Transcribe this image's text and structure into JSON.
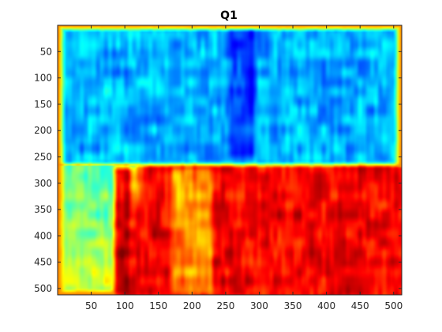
{
  "chart_data": {
    "type": "heatmap",
    "title": "Q1",
    "xlabel": "",
    "ylabel": "",
    "xlim": [
      0,
      512
    ],
    "ylim": [
      0,
      512
    ],
    "y_direction": "reversed",
    "colormap": "jet",
    "grid": false,
    "x_ticks": [
      50,
      100,
      150,
      200,
      250,
      300,
      350,
      400,
      450,
      500
    ],
    "y_ticks": [
      50,
      100,
      150,
      200,
      250,
      300,
      350,
      400,
      450,
      500
    ],
    "regions": [
      {
        "name": "upper",
        "x_range": [
          0,
          512
        ],
        "y_range": [
          0,
          265
        ],
        "value_level": 0.3
      },
      {
        "name": "lower",
        "x_range": [
          0,
          512
        ],
        "y_range": [
          265,
          512
        ],
        "value_level": 0.88
      },
      {
        "name": "lower-left-transition",
        "x_range": [
          0,
          120
        ],
        "y_range": [
          265,
          512
        ],
        "value_level": 0.45
      },
      {
        "name": "border",
        "x_range": [
          0,
          512
        ],
        "y_range": [
          0,
          512
        ],
        "value_level": 0.75
      }
    ],
    "features": [
      {
        "name": "dark-vertical-band-upper",
        "x_range": [
          255,
          295
        ],
        "y_range": [
          0,
          250
        ],
        "value_level": 0.15
      },
      {
        "name": "dark-vertical-band-lower",
        "x_range": [
          85,
          110
        ],
        "y_range": [
          270,
          512
        ],
        "value_level": 0.98
      },
      {
        "name": "bright-vertical-band-lower",
        "x_range": [
          170,
          230
        ],
        "y_range": [
          270,
          512
        ],
        "value_level": 0.7
      }
    ]
  }
}
